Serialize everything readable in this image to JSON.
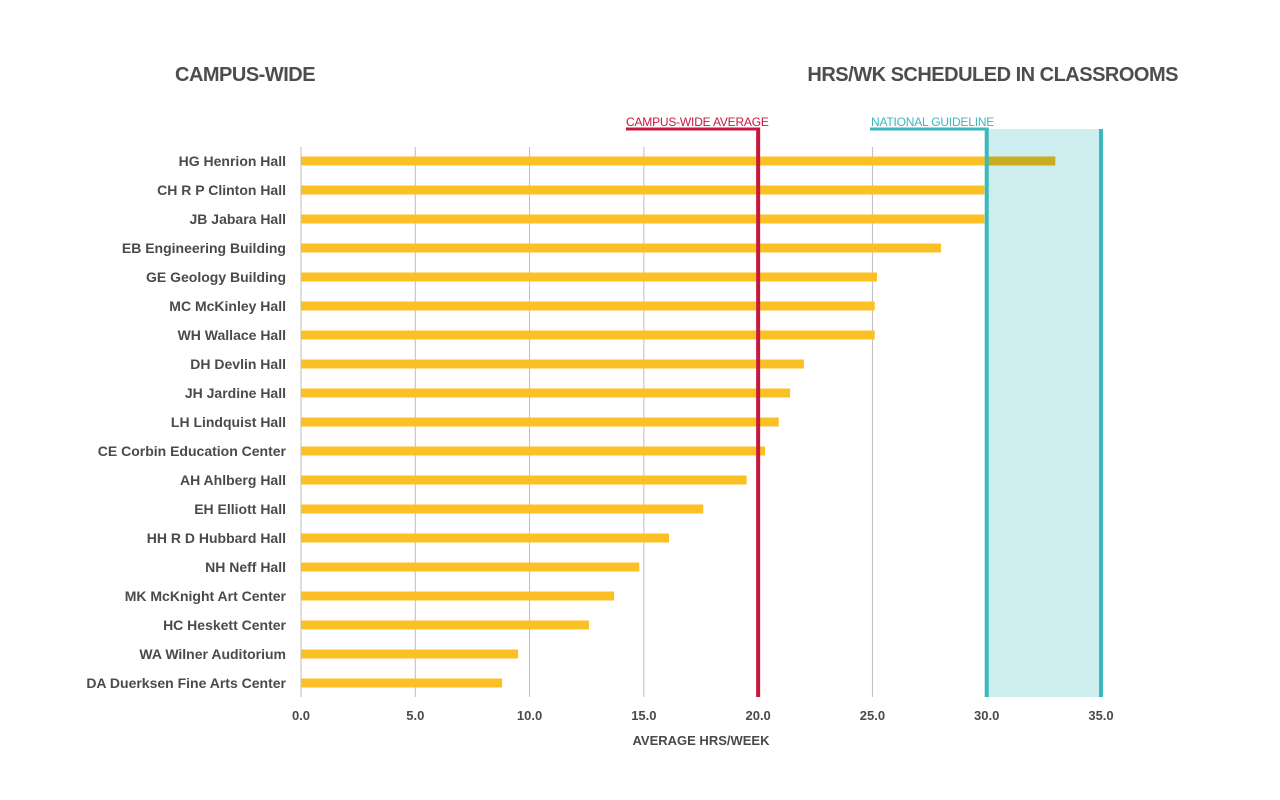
{
  "header": {
    "left_title": "CAMPUS-WIDE",
    "right_title": "HRS/WK SCHEDULED IN CLASSROOMS"
  },
  "colors": {
    "bar": "#FBC124",
    "bar_over_guideline": "#C9AD1F",
    "average_line": "#C8173F",
    "guideline": "#3BB8BC",
    "guideline_band": "#CDEDEF",
    "grid": "#BDBDBD",
    "text": "#4A4A4A"
  },
  "chart_data": {
    "type": "bar",
    "orientation": "horizontal",
    "categories": [
      "HG Henrion Hall",
      "CH R P  Clinton Hall",
      "JB Jabara Hall",
      "EB Engineering Building",
      "GE Geology Building",
      "MC McKinley Hall",
      "WH Wallace Hall",
      "DH Devlin Hall",
      "JH Jardine Hall",
      "LH Lindquist Hall",
      "CE Corbin Education Center",
      "AH Ahlberg Hall",
      "EH Elliott Hall",
      "HH R D  Hubbard Hall",
      "NH Neff Hall",
      "MK McKnight Art Center",
      "HC Heskett Center",
      "WA Wilner Auditorium",
      "DA Duerksen Fine Arts Center"
    ],
    "values": [
      33.0,
      29.9,
      29.9,
      28.0,
      25.2,
      25.1,
      25.1,
      22.0,
      21.4,
      20.9,
      20.3,
      19.5,
      17.6,
      16.1,
      14.8,
      13.7,
      12.6,
      9.5,
      8.8
    ],
    "xlabel": "AVERAGE HRS/WEEK",
    "ylabel": "",
    "xlim": [
      0,
      35
    ],
    "xticks": [
      "0.0",
      "5.0",
      "10.0",
      "15.0",
      "20.0",
      "25.0",
      "30.0",
      "35.0"
    ],
    "grid": true,
    "reference_lines": [
      {
        "label": "CAMPUS-WIDE AVERAGE",
        "value": 20
      },
      {
        "label": "NATIONAL GUIDELINE",
        "value": 30,
        "band_to": 35
      }
    ]
  }
}
